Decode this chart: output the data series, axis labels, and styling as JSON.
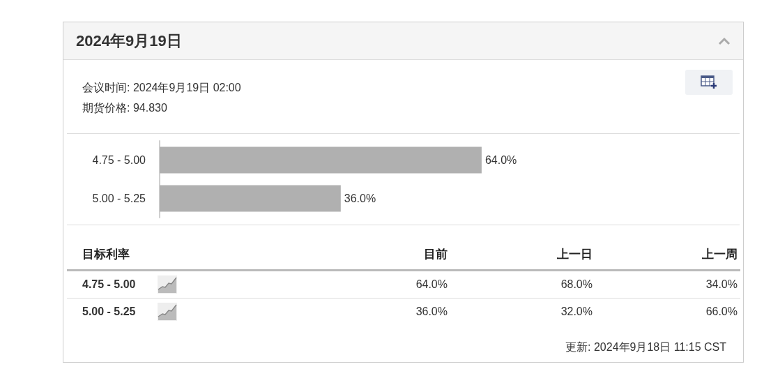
{
  "chart_data": [
    {
      "type": "bar",
      "orientation": "horizontal",
      "title": "2024年9月19日",
      "annotations": [
        "会议时间: 2024年9月19日 02:00",
        "期货价格: 94.830"
      ],
      "categories": [
        "4.75 - 5.00",
        "5.00 - 5.25"
      ],
      "values": [
        64,
        36
      ],
      "value_labels": [
        "64.0%",
        "36.0%"
      ],
      "color": "#b0b0b0",
      "xlim": [
        0,
        115
      ],
      "tick_labels": "y",
      "grid": false
    },
    {
      "type": "other",
      "ylabel": "目标利率",
      "categories": [
        "4.75 - 5.00",
        "5.00 - 5.25"
      ],
      "series": [
        {
          "name": "目前",
          "values": [
            64,
            36
          ],
          "value_labels": [
            "64.0%",
            "36.0%"
          ]
        },
        {
          "name": "上一日",
          "values": [
            68,
            32
          ],
          "value_labels": [
            "68.0%",
            "32.0%"
          ]
        },
        {
          "name": "上一周",
          "values": [
            34,
            66
          ],
          "value_labels": [
            "34.0%",
            "66.0%"
          ]
        }
      ],
      "annotations": [
        "更新: 2024年9月18日 11:15 CST"
      ]
    }
  ]
}
